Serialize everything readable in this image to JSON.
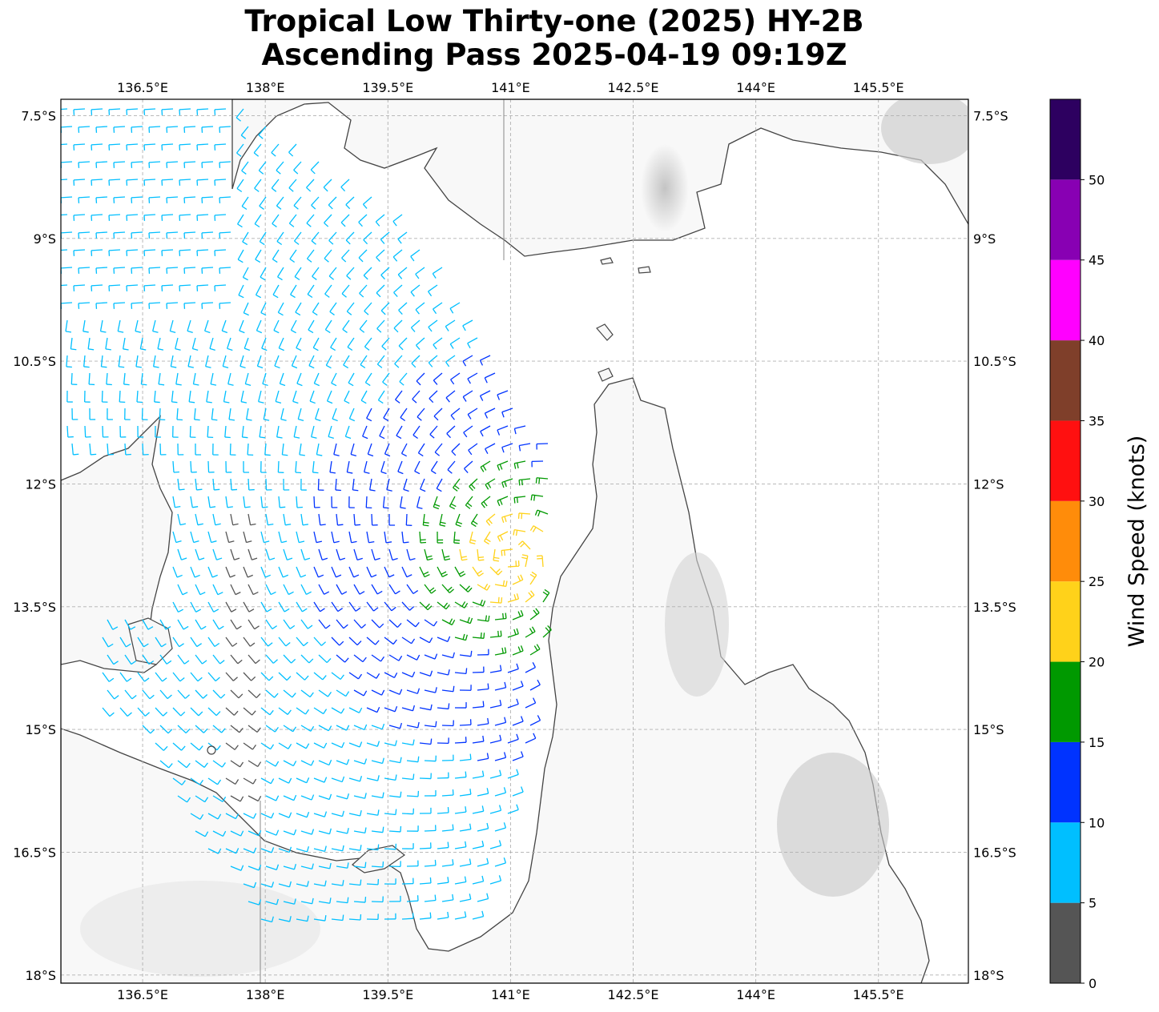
{
  "title": {
    "line1": "Tropical Low Thirty-one (2025) HY-2B",
    "line2": "Ascending Pass 2025-04-19 09:19Z"
  },
  "map": {
    "lon_ticks": [
      "136.5°E",
      "138°E",
      "139.5°E",
      "141°E",
      "142.5°E",
      "144°E",
      "145.5°E"
    ],
    "lat_ticks": [
      "7.5°S",
      "9°S",
      "10.5°S",
      "12°S",
      "13.5°S",
      "15°S",
      "16.5°S",
      "18°S"
    ],
    "lon_range": [
      135.5,
      146.6
    ],
    "lat_range": [
      -18.1,
      -7.3
    ],
    "grid": true,
    "background": "grayscale topography",
    "storm_center": {
      "lon": 141.0,
      "lat": -12.9
    }
  },
  "colorbar": {
    "title": "Wind Speed (knots)",
    "ticks": [
      "0",
      "5",
      "10",
      "15",
      "20",
      "25",
      "30",
      "35",
      "40",
      "45",
      "50"
    ],
    "bins": [
      {
        "from": 0,
        "to": 5,
        "color": "#555555"
      },
      {
        "from": 5,
        "to": 10,
        "color": "#00bfff"
      },
      {
        "from": 10,
        "to": 15,
        "color": "#0033ff"
      },
      {
        "from": 15,
        "to": 20,
        "color": "#009900"
      },
      {
        "from": 20,
        "to": 25,
        "color": "#ffd21a"
      },
      {
        "from": 25,
        "to": 30,
        "color": "#ff8c0a"
      },
      {
        "from": 30,
        "to": 35,
        "color": "#ff1010"
      },
      {
        "from": 35,
        "to": 40,
        "color": "#7f3f2a"
      },
      {
        "from": 40,
        "to": 45,
        "color": "#ff00ff"
      },
      {
        "from": 45,
        "to": 50,
        "color": "#8800b3"
      },
      {
        "from": 50,
        "to": 55,
        "color": "#2d0060"
      }
    ]
  }
}
